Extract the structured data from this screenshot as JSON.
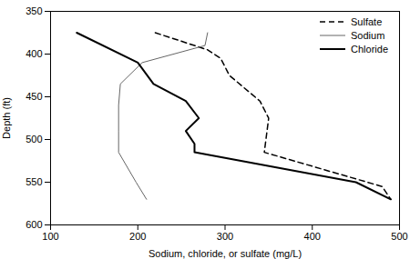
{
  "chart_data": {
    "type": "line",
    "xlabel": "Sodium, chloride, or sulfate (mg/L)",
    "ylabel": "Depth (ft)",
    "xlim": [
      100,
      500
    ],
    "xticks": [
      100,
      200,
      300,
      400,
      500
    ],
    "ylim": [
      350,
      600
    ],
    "yticks": [
      350,
      400,
      450,
      500,
      550,
      600
    ],
    "grid": false,
    "legend": "top-right",
    "series": [
      {
        "name": "Sulfate",
        "color": "#000000",
        "line_style": "dashed",
        "x": [
          220,
          280,
          295,
          305,
          340,
          350,
          345,
          480,
          490
        ],
        "y": [
          375,
          395,
          405,
          425,
          455,
          475,
          515,
          555,
          570
        ]
      },
      {
        "name": "Sodium",
        "color": "#666666",
        "line_style": "solid",
        "x": [
          280,
          277,
          205,
          180,
          178,
          178,
          178,
          198,
          210
        ],
        "y": [
          375,
          390,
          410,
          435,
          460,
          490,
          515,
          550,
          570
        ]
      },
      {
        "name": "Chloride",
        "color": "#000000",
        "line_style": "solid",
        "x": [
          130,
          200,
          218,
          255,
          270,
          255,
          265,
          265,
          450,
          490
        ],
        "y": [
          375,
          410,
          435,
          455,
          475,
          490,
          505,
          515,
          550,
          570
        ]
      }
    ]
  }
}
